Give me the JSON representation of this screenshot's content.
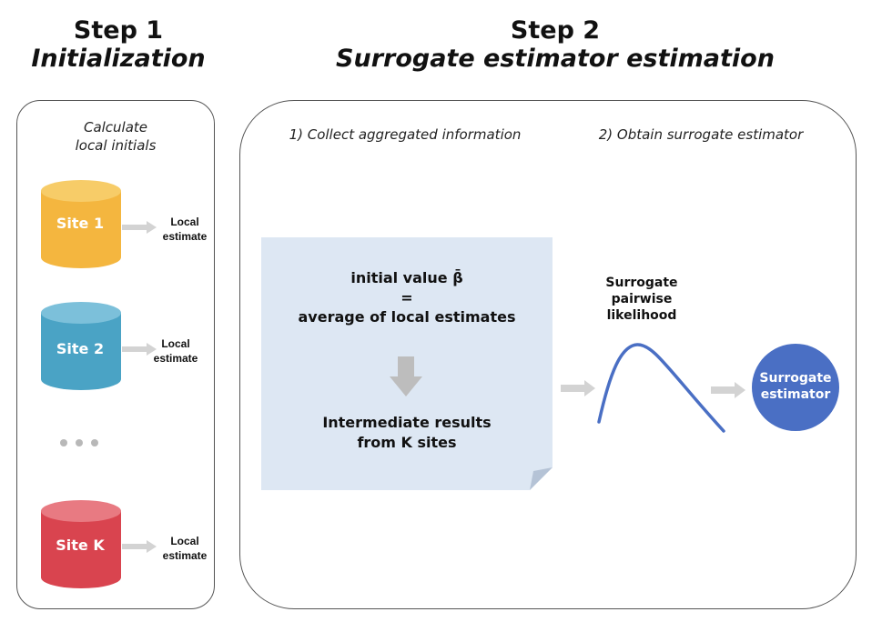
{
  "step1": {
    "title": "Step 1",
    "subtitle": "Initialization",
    "section_label_line1": "Calculate",
    "section_label_line2": "local initials",
    "sites": [
      {
        "name": "Site 1",
        "output_line1": "Local",
        "output_line2": "estimate",
        "color": "#f4b63f",
        "top_color": "#f7cc68"
      },
      {
        "name": "Site 2",
        "output_line1": "Local",
        "output_line2": "estimate",
        "color": "#4aa3c5",
        "top_color": "#7cc0da"
      },
      {
        "name": "Site K",
        "output_line1": "Local",
        "output_line2": "estimate",
        "color": "#d9444f",
        "top_color": "#e87a82"
      }
    ],
    "ellipsis": "..."
  },
  "step2": {
    "title": "Step 2",
    "subtitle": "Surrogate estimator estimation",
    "part1_label": "1) Collect aggregated information",
    "part2_label": "2) Obtain surrogate estimator",
    "note": {
      "line1": "initial value β̄",
      "line2": "=",
      "line3": "average of local estimates",
      "line4": "Intermediate results",
      "line5": "from K sites",
      "color": "#dde7f3"
    },
    "curve_label_line1": "Surrogate",
    "curve_label_line2": "pairwise",
    "curve_label_line3": "likelihood",
    "result_line1": "Surrogate",
    "result_line2": "estimator",
    "result_color": "#4a6fc4",
    "curve_color": "#4a6fc4"
  },
  "colors": {
    "arrow": "#d3d3d3",
    "border": "#555555"
  }
}
